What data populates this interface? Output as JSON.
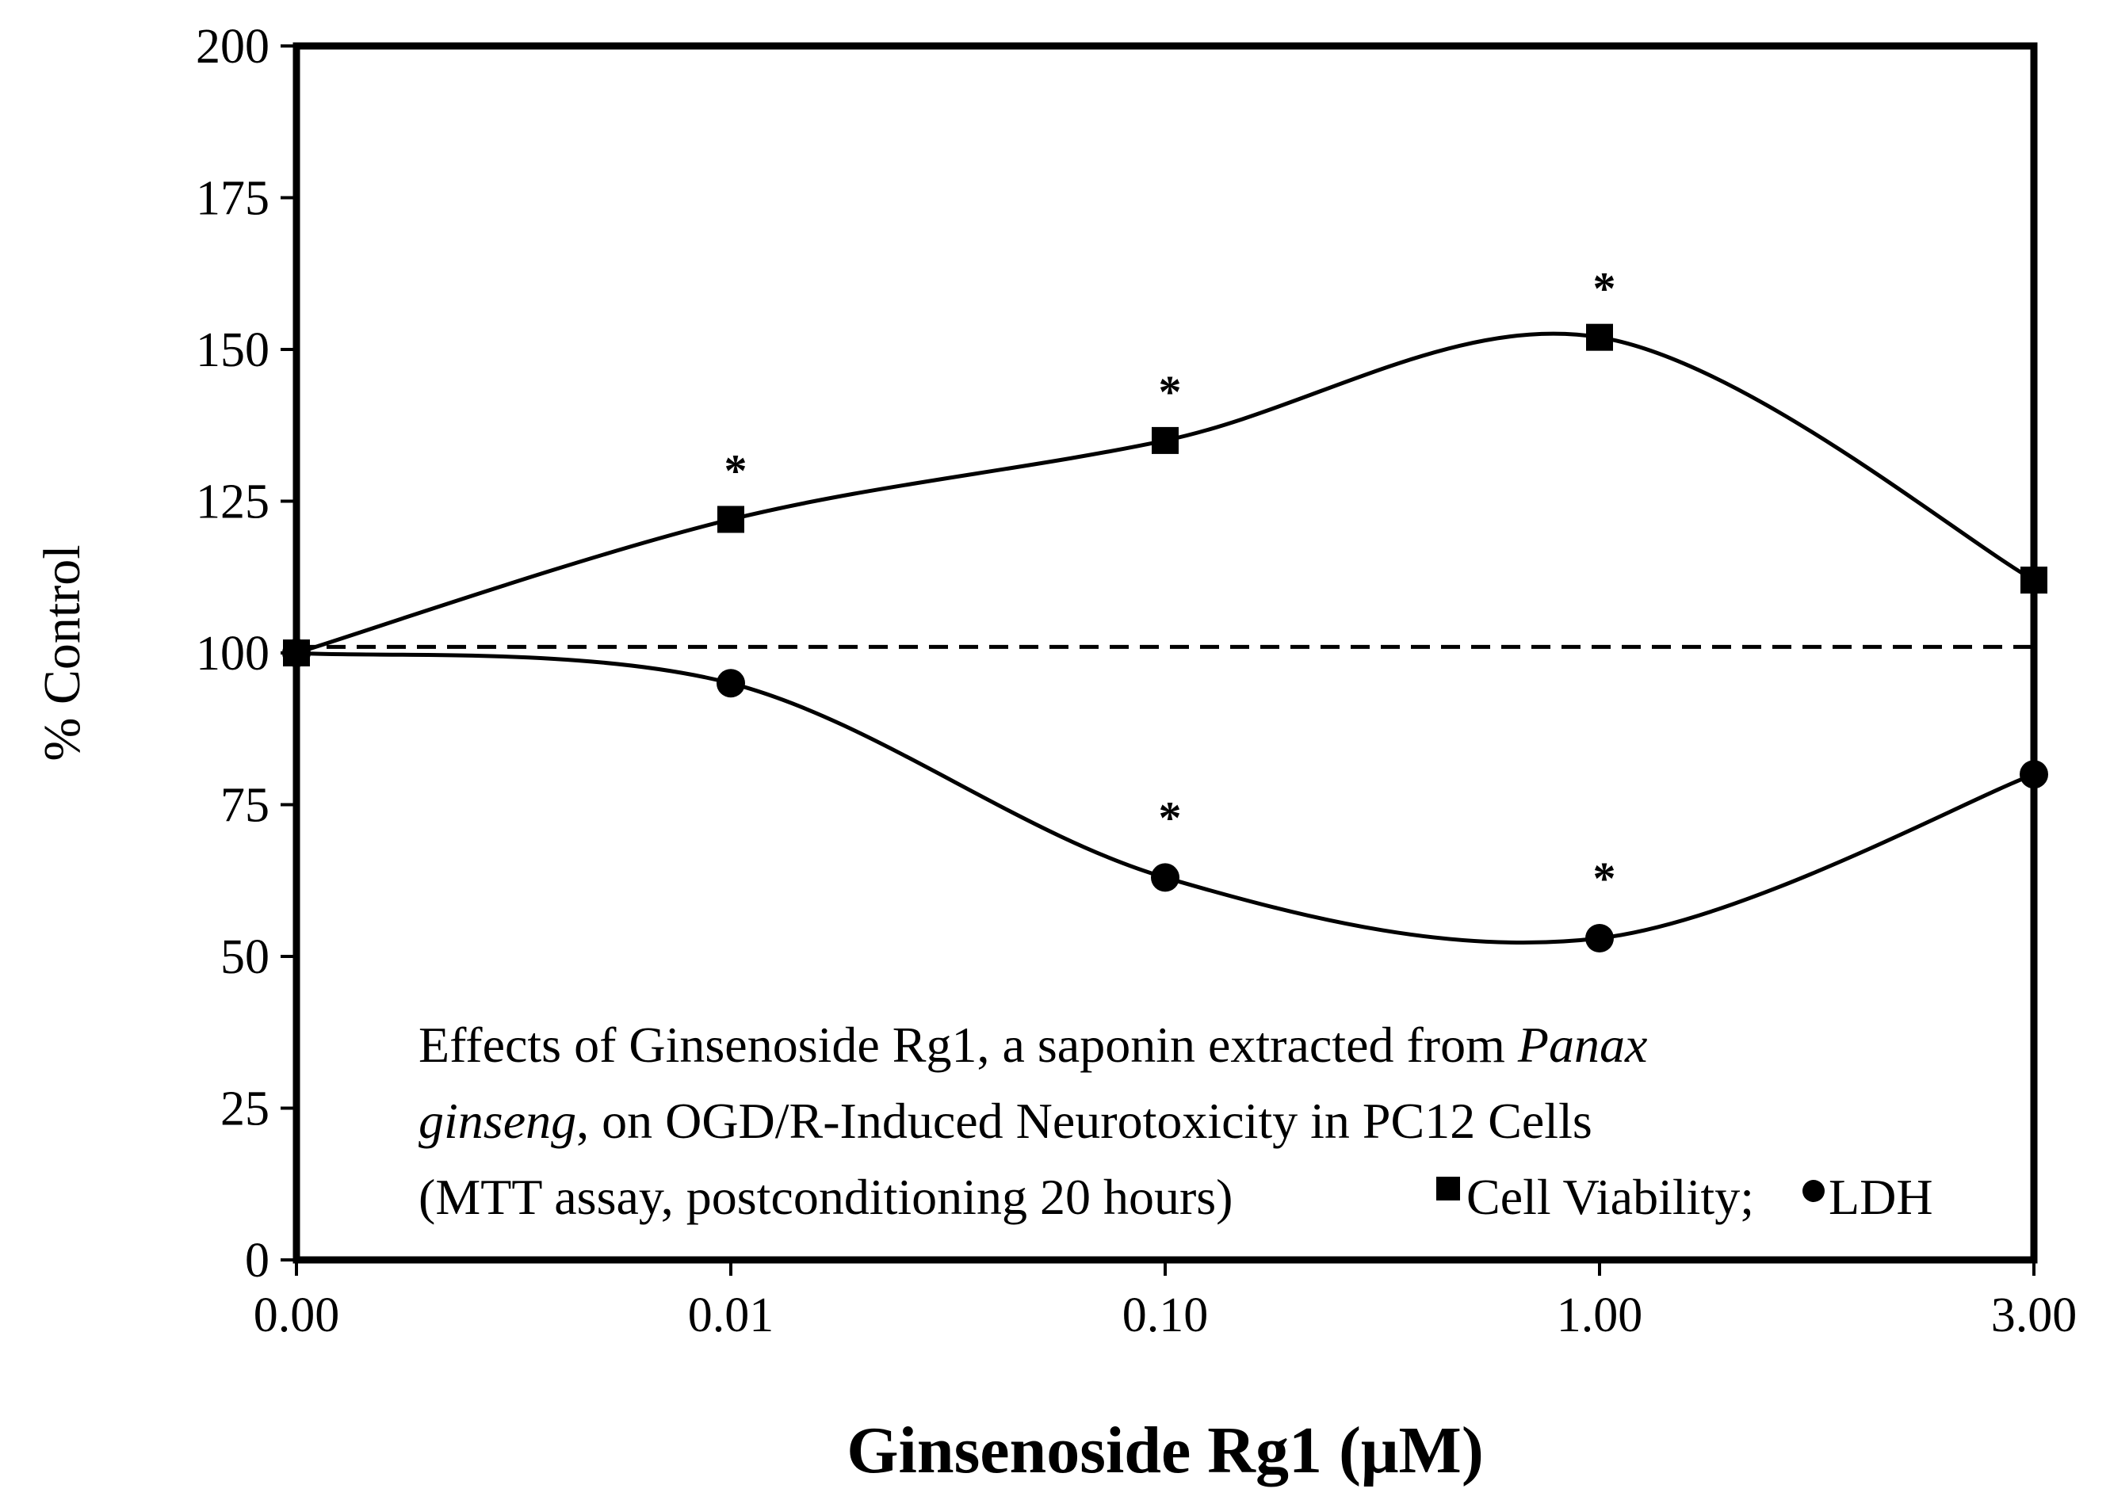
{
  "chart_data": {
    "type": "line",
    "title": "",
    "xlabel": "Ginsenoside Rg1 (μM)",
    "ylabel": "% Control",
    "categories": [
      "0.00",
      "0.01",
      "0.10",
      "1.00",
      "3.00"
    ],
    "ylim": [
      0,
      200
    ],
    "yticks": [
      0,
      25,
      50,
      75,
      100,
      125,
      150,
      175,
      200
    ],
    "grid": false,
    "reference_line": {
      "y": 101,
      "style": "dashed"
    },
    "series": [
      {
        "name": "Cell Viability",
        "marker": "square",
        "values": [
          100,
          122,
          135,
          152,
          112
        ],
        "significant": [
          false,
          true,
          true,
          true,
          false
        ]
      },
      {
        "name": "LDH",
        "marker": "circle",
        "values": [
          100,
          95,
          63,
          53,
          80
        ],
        "significant": [
          false,
          false,
          true,
          true,
          false
        ]
      }
    ],
    "significance_marker": "*",
    "annotation": {
      "line1_prefix": "Effects of Ginsenoside Rg1, a saponin extracted from ",
      "line1_italic": "Panax",
      "line2_italic": "ginseng",
      "line2_rest": ", on OGD/R-Induced Neurotoxicity in PC12 Cells",
      "line3_prefix": "(MTT assay, postconditioning 20 hours) ",
      "legend_viability": "Cell Viability;",
      "legend_ldh": "LDH"
    }
  },
  "colors": {
    "line": "#000000",
    "background": "#ffffff"
  }
}
